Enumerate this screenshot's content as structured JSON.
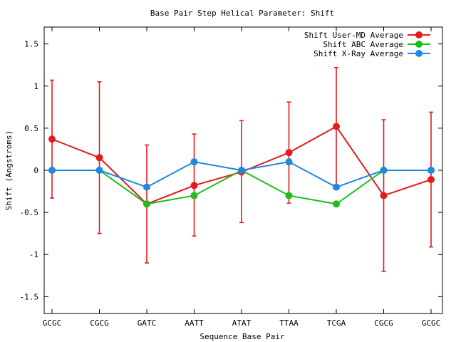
{
  "chart_data": {
    "type": "line",
    "title": "Base Pair Step Helical Parameter: Shift",
    "xlabel": "Sequence Base Pair",
    "ylabel": "Shift (Angstroms)",
    "categories": [
      "GCGC",
      "CGCG",
      "GATC",
      "AATT",
      "ATAT",
      "TTAA",
      "TCGA",
      "CGCG",
      "GCGC"
    ],
    "ylim": [
      -1.7,
      1.7
    ],
    "yticks": [
      -1.5,
      -1,
      -0.5,
      0,
      0.5,
      1,
      1.5
    ],
    "ytick_labels": [
      "-1.5",
      "-1",
      "-0.5",
      "0",
      "0.5",
      "1",
      "1.5"
    ],
    "grid": false,
    "legend_position": "top-right",
    "series": [
      {
        "name": "Shift User-MD Average",
        "color": "#e41a1c",
        "values": [
          0.37,
          0.15,
          -0.4,
          -0.18,
          -0.02,
          0.21,
          0.52,
          -0.3,
          -0.11
        ],
        "err_low": [
          -0.33,
          -0.75,
          -1.1,
          -0.78,
          -0.62,
          -0.39,
          -0.18,
          -1.2,
          -0.91
        ],
        "err_high": [
          1.07,
          1.05,
          0.3,
          0.43,
          0.59,
          0.81,
          1.22,
          0.6,
          0.69
        ]
      },
      {
        "name": "Shift ABC Average",
        "color": "#1fbd1f",
        "values": [
          0.0,
          0.0,
          -0.4,
          -0.3,
          0.0,
          -0.3,
          -0.4,
          0.0,
          0.0
        ]
      },
      {
        "name": "Shift X-Ray Average",
        "color": "#1e88e5",
        "values": [
          0.0,
          0.0,
          -0.2,
          0.1,
          0.0,
          0.1,
          -0.2,
          0.0,
          0.0
        ]
      }
    ]
  }
}
